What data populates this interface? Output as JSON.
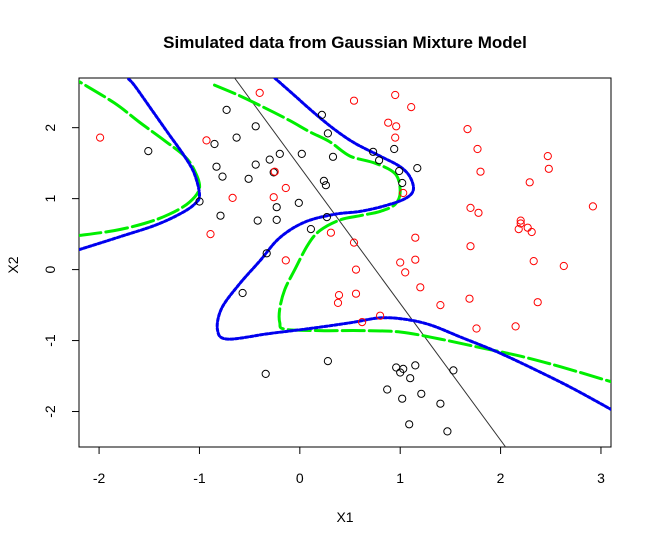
{
  "chart_data": {
    "type": "scatter",
    "title": "Simulated data from Gaussian Mixture Model",
    "xlabel": "X1",
    "ylabel": "X2",
    "xlim": [
      -2.2,
      3.1
    ],
    "ylim": [
      -2.5,
      2.7
    ],
    "xticks": [
      -2,
      -1,
      0,
      1,
      2,
      3
    ],
    "yticks": [
      -2,
      -1,
      0,
      1,
      2
    ],
    "grid": false,
    "legend": "none",
    "colors": {
      "class_black": "#000000",
      "class_red": "#ff0000",
      "boundary_green": "#00ee00",
      "boundary_blue": "#0000ee",
      "boundary_line": "#333333"
    },
    "series": [
      {
        "color": "#000000",
        "points": [
          [
            -1.51,
            1.67
          ],
          [
            -1.0,
            0.96
          ],
          [
            -0.85,
            1.77
          ],
          [
            -0.83,
            1.45
          ],
          [
            -0.77,
            1.31
          ],
          [
            -0.73,
            2.25
          ],
          [
            -0.63,
            1.86
          ],
          [
            -0.51,
            1.28
          ],
          [
            -0.44,
            1.48
          ],
          [
            -0.44,
            2.02
          ],
          [
            -0.3,
            1.55
          ],
          [
            -0.26,
            1.37
          ],
          [
            -0.2,
            1.63
          ],
          [
            -0.23,
            0.88
          ],
          [
            -0.42,
            0.69
          ],
          [
            -0.23,
            0.7
          ],
          [
            -0.01,
            0.94
          ],
          [
            0.02,
            1.63
          ],
          [
            0.22,
            2.18
          ],
          [
            0.28,
            1.92
          ],
          [
            0.33,
            1.59
          ],
          [
            0.24,
            1.25
          ],
          [
            0.26,
            1.19
          ],
          [
            0.27,
            0.74
          ],
          [
            0.11,
            0.57
          ],
          [
            0.73,
            1.66
          ],
          [
            0.79,
            1.54
          ],
          [
            0.94,
            1.7
          ],
          [
            0.99,
            1.39
          ],
          [
            1.02,
            1.22
          ],
          [
            1.17,
            1.43
          ],
          [
            -0.33,
            0.23
          ],
          [
            -0.57,
            -0.33
          ],
          [
            -0.79,
            0.76
          ],
          [
            -0.34,
            -1.47
          ],
          [
            0.28,
            -1.29
          ],
          [
            0.96,
            -1.38
          ],
          [
            1.0,
            -1.45
          ],
          [
            1.03,
            -1.4
          ],
          [
            1.1,
            -1.53
          ],
          [
            1.15,
            -1.35
          ],
          [
            0.87,
            -1.69
          ],
          [
            1.02,
            -1.82
          ],
          [
            1.21,
            -1.75
          ],
          [
            1.09,
            -2.18
          ],
          [
            1.4,
            -1.89
          ],
          [
            1.47,
            -2.28
          ],
          [
            1.53,
            -1.42
          ]
        ]
      },
      {
        "color": "#ff0000",
        "points": [
          [
            -1.99,
            1.86
          ],
          [
            -0.93,
            1.82
          ],
          [
            -0.89,
            0.5
          ],
          [
            -0.67,
            1.01
          ],
          [
            -0.4,
            2.49
          ],
          [
            -0.25,
            1.38
          ],
          [
            -0.26,
            1.02
          ],
          [
            -0.14,
            1.15
          ],
          [
            -0.14,
            0.13
          ],
          [
            0.31,
            0.52
          ],
          [
            0.54,
            2.38
          ],
          [
            0.54,
            0.38
          ],
          [
            0.56,
            0.0
          ],
          [
            0.56,
            -0.34
          ],
          [
            0.39,
            -0.36
          ],
          [
            0.38,
            -0.47
          ],
          [
            0.8,
            -0.65
          ],
          [
            0.88,
            2.07
          ],
          [
            0.95,
            2.46
          ],
          [
            0.96,
            2.02
          ],
          [
            0.95,
            1.86
          ],
          [
            1.03,
            1.08
          ],
          [
            1.11,
            2.29
          ],
          [
            1.0,
            0.1
          ],
          [
            1.05,
            -0.04
          ],
          [
            1.15,
            0.45
          ],
          [
            1.15,
            0.14
          ],
          [
            1.2,
            -0.25
          ],
          [
            1.4,
            -0.5
          ],
          [
            1.67,
            1.98
          ],
          [
            1.77,
            1.7
          ],
          [
            1.8,
            1.38
          ],
          [
            1.7,
            0.87
          ],
          [
            1.78,
            0.8
          ],
          [
            1.7,
            0.33
          ],
          [
            1.69,
            -0.41
          ],
          [
            1.76,
            -0.83
          ],
          [
            2.15,
            -0.8
          ],
          [
            2.2,
            0.69
          ],
          [
            2.18,
            0.57
          ],
          [
            2.2,
            0.65
          ],
          [
            2.27,
            0.59
          ],
          [
            2.31,
            0.53
          ],
          [
            2.29,
            1.23
          ],
          [
            2.47,
            1.6
          ],
          [
            2.48,
            1.42
          ],
          [
            2.33,
            0.12
          ],
          [
            2.37,
            -0.46
          ],
          [
            2.63,
            0.05
          ],
          [
            2.92,
            0.89
          ],
          [
            0.62,
            -0.74
          ]
        ]
      }
    ],
    "lines": [
      {
        "color": "#333333",
        "style": "solid",
        "points": [
          [
            -0.65,
            2.7
          ],
          [
            2.05,
            -2.5
          ]
        ]
      }
    ],
    "curves": [
      {
        "color": "#00ee00",
        "style": "dashed",
        "points": [
          [
            -2.2,
            0.48
          ],
          [
            -1.85,
            0.55
          ],
          [
            -1.55,
            0.65
          ],
          [
            -1.3,
            0.78
          ],
          [
            -1.1,
            0.95
          ],
          [
            -1.0,
            1.15
          ],
          [
            -1.05,
            1.4
          ],
          [
            -1.15,
            1.6
          ],
          [
            -1.35,
            1.82
          ],
          [
            -1.6,
            2.08
          ],
          [
            -1.85,
            2.35
          ],
          [
            -2.2,
            2.65
          ]
        ]
      },
      {
        "color": "#00ee00",
        "style": "dashed",
        "points": [
          [
            -0.85,
            2.6
          ],
          [
            -0.6,
            2.45
          ],
          [
            -0.35,
            2.28
          ],
          [
            -0.1,
            2.1
          ],
          [
            0.1,
            1.94
          ],
          [
            0.3,
            1.8
          ],
          [
            0.5,
            1.6
          ],
          [
            0.75,
            1.5
          ],
          [
            0.95,
            1.35
          ],
          [
            1.0,
            1.1
          ],
          [
            0.95,
            0.92
          ],
          [
            0.8,
            0.82
          ],
          [
            0.6,
            0.76
          ],
          [
            0.4,
            0.7
          ],
          [
            0.2,
            0.55
          ],
          [
            0.08,
            0.35
          ],
          [
            -0.05,
            0.0
          ],
          [
            -0.15,
            -0.28
          ],
          [
            -0.2,
            -0.55
          ],
          [
            -0.2,
            -0.75
          ],
          [
            -0.15,
            -0.84
          ],
          [
            0.2,
            -0.86
          ],
          [
            0.6,
            -0.86
          ],
          [
            1.0,
            -0.88
          ],
          [
            1.4,
            -0.98
          ],
          [
            1.8,
            -1.1
          ],
          [
            2.2,
            -1.22
          ],
          [
            2.6,
            -1.37
          ],
          [
            3.1,
            -1.58
          ]
        ]
      },
      {
        "color": "#0000ee",
        "style": "dotted",
        "points": [
          [
            -2.2,
            0.28
          ],
          [
            -1.8,
            0.46
          ],
          [
            -1.45,
            0.62
          ],
          [
            -1.2,
            0.78
          ],
          [
            -1.05,
            0.92
          ],
          [
            -1.0,
            1.05
          ],
          [
            -1.05,
            1.35
          ],
          [
            -1.15,
            1.6
          ],
          [
            -1.3,
            1.9
          ],
          [
            -1.45,
            2.2
          ],
          [
            -1.65,
            2.6
          ],
          [
            -1.72,
            2.7
          ]
        ]
      },
      {
        "color": "#0000ee",
        "style": "dotted",
        "points": [
          [
            -0.25,
            2.7
          ],
          [
            -0.05,
            2.45
          ],
          [
            0.15,
            2.2
          ],
          [
            0.35,
            1.97
          ],
          [
            0.55,
            1.78
          ],
          [
            0.8,
            1.6
          ],
          [
            1.0,
            1.45
          ],
          [
            1.1,
            1.3
          ],
          [
            1.13,
            1.12
          ],
          [
            1.05,
            1.0
          ],
          [
            0.85,
            0.9
          ],
          [
            0.6,
            0.82
          ],
          [
            0.35,
            0.78
          ],
          [
            0.05,
            0.67
          ],
          [
            -0.2,
            0.45
          ],
          [
            -0.4,
            0.12
          ],
          [
            -0.6,
            -0.2
          ],
          [
            -0.78,
            -0.55
          ],
          [
            -0.82,
            -0.85
          ],
          [
            -0.72,
            -0.98
          ],
          [
            -0.3,
            -0.9
          ],
          [
            0.1,
            -0.83
          ],
          [
            0.5,
            -0.75
          ],
          [
            0.8,
            -0.68
          ],
          [
            1.05,
            -0.7
          ],
          [
            1.3,
            -0.78
          ],
          [
            1.6,
            -0.95
          ],
          [
            1.95,
            -1.15
          ],
          [
            2.3,
            -1.38
          ],
          [
            2.7,
            -1.66
          ],
          [
            3.1,
            -1.97
          ]
        ]
      }
    ]
  }
}
